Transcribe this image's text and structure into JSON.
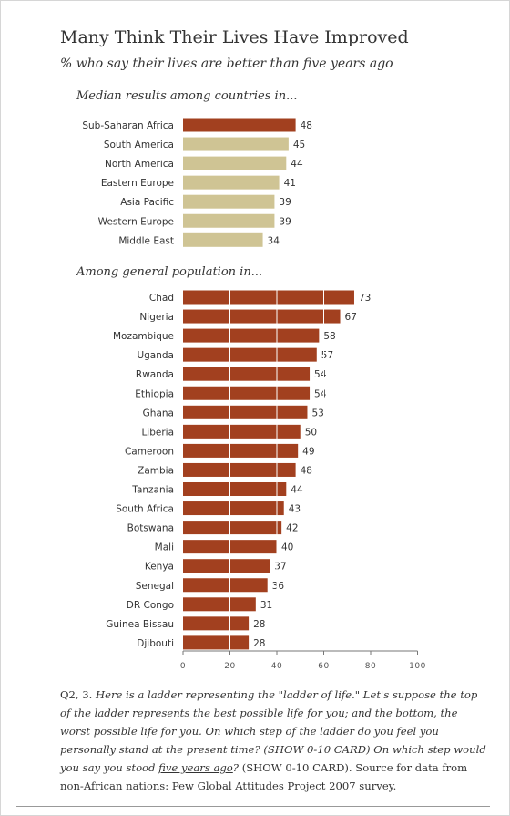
{
  "title": "Many Think Their Lives Have Improved",
  "subtitle": "% who say their lives are better than five years ago",
  "note": {
    "q": "Q2, 3. ",
    "p1": "Here is a ladder representing the \"ladder of life.\"  Let's suppose the top of the ladder represents the best possible life for you; and the bottom, the worst possible life for you.  On which step of the ladder do you feel you personally stand at the present time? (SHOW 0-10 CARD)  On which step would you say you stood ",
    "p2": "five years ago",
    "p3": "? ",
    "p4": "(SHOW 0-10 CARD). Source for data from non-African nations: Pew Global Attitudes Project 2007 survey."
  },
  "colors": {
    "dark_bar": "#a2401f",
    "light_bar": "#cfc494",
    "text": "#333333",
    "axis": "#777777"
  },
  "chart_data": [
    {
      "type": "bar",
      "orientation": "horizontal",
      "title": "Median results among countries in...",
      "categories": [
        "Sub-Saharan Africa",
        "South America",
        "North America",
        "Eastern Europe",
        "Asia Pacific",
        "Western Europe",
        "Middle East"
      ],
      "values": [
        48,
        45,
        44,
        41,
        39,
        39,
        34
      ],
      "bar_colors": [
        "#a2401f",
        "#cfc494",
        "#cfc494",
        "#cfc494",
        "#cfc494",
        "#cfc494",
        "#cfc494"
      ],
      "xlim": [
        0,
        100
      ]
    },
    {
      "type": "bar",
      "orientation": "horizontal",
      "title": "Among general population in...",
      "categories": [
        "Chad",
        "Nigeria",
        "Mozambique",
        "Uganda",
        "Rwanda",
        "Ethiopia",
        "Ghana",
        "Liberia",
        "Cameroon",
        "Zambia",
        "Tanzania",
        "South Africa",
        "Botswana",
        "Mali",
        "Kenya",
        "Senegal",
        "DR Congo",
        "Guinea Bissau",
        "Djibouti"
      ],
      "values": [
        73,
        67,
        58,
        57,
        54,
        54,
        53,
        50,
        49,
        48,
        44,
        43,
        42,
        40,
        37,
        36,
        31,
        28,
        28
      ],
      "bar_color": "#a2401f",
      "xlim": [
        0,
        100
      ],
      "xticks": [
        0,
        20,
        40,
        60,
        80,
        100
      ],
      "grid": "vertical"
    }
  ]
}
